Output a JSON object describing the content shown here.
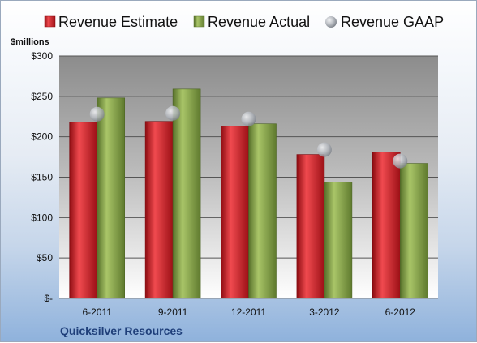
{
  "legend": [
    {
      "label": "Revenue Estimate",
      "color": "#c9151e",
      "marker": "square"
    },
    {
      "label": "Revenue Actual",
      "color": "#7a9a3c",
      "marker": "square"
    },
    {
      "label": "Revenue GAAP",
      "color": "#a9adb5",
      "marker": "circle"
    }
  ],
  "unit_label": "$millions",
  "company": "Quicksilver Resources",
  "colors": {
    "estimate": "#c9151e",
    "actual": "#7a9a3c",
    "gaap": "#a9adb5",
    "company_text": "#1f3f7a"
  },
  "chart_data": {
    "type": "bar",
    "categories": [
      "6-2011",
      "9-2011",
      "12-2011",
      "3-2012",
      "6-2012"
    ],
    "series": [
      {
        "name": "Revenue Estimate",
        "type": "bar",
        "values": [
          218,
          219,
          213,
          178,
          181
        ]
      },
      {
        "name": "Revenue Actual",
        "type": "bar",
        "values": [
          248,
          259,
          216,
          144,
          167
        ]
      },
      {
        "name": "Revenue GAAP",
        "type": "scatter",
        "values": [
          228,
          229,
          222,
          184,
          170
        ]
      }
    ],
    "ylim": [
      0,
      300
    ],
    "yticks": [
      0,
      50,
      100,
      150,
      200,
      250,
      300
    ],
    "ytick_labels": [
      "$-",
      "$50",
      "$100",
      "$150",
      "$200",
      "$250",
      "$300"
    ],
    "ylabel": "$millions",
    "grid": true,
    "legend_position": "top"
  }
}
